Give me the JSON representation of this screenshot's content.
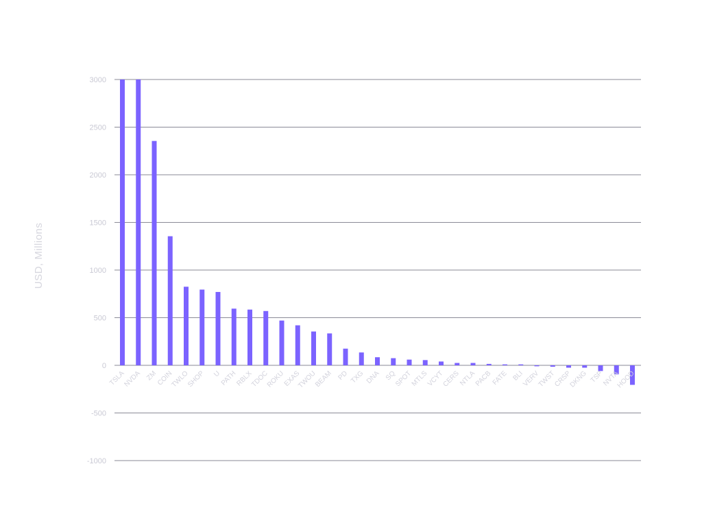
{
  "colors": {
    "bar": "#7b63ff",
    "grid": "#8a8a96",
    "tick_text": "#c9c9d4",
    "axis_label": "#d6d6de"
  },
  "chart_data": {
    "type": "bar",
    "title": "",
    "xlabel": "",
    "ylabel": "USD, Millions",
    "ylim": [
      -1000,
      3000
    ],
    "yticks": [
      3000,
      2500,
      2000,
      1500,
      1000,
      500,
      0,
      -500,
      -1000
    ],
    "grid": true,
    "legend": "none",
    "categories": [
      "TSLA",
      "NVDA",
      "ZM",
      "COIN",
      "TWLO",
      "SHOP",
      "U",
      "PATH",
      "RBLX",
      "TDOC",
      "ROKU",
      "EXAS",
      "TWOU",
      "BEAM",
      "PD",
      "TXG",
      "DNA",
      "SQ",
      "SPOT",
      "MTLS",
      "VCYT",
      "CERS",
      "NTLA",
      "PACB",
      "FATE",
      "BLI",
      "VERV",
      "TWST",
      "CRSP",
      "DKNG",
      "TSP",
      "NVTA",
      "HOOD"
    ],
    "values": [
      3000,
      3000,
      2355,
      1355,
      825,
      795,
      770,
      595,
      585,
      570,
      470,
      420,
      355,
      335,
      175,
      135,
      85,
      75,
      60,
      55,
      40,
      25,
      25,
      15,
      10,
      10,
      -10,
      -15,
      -25,
      -25,
      -60,
      -95,
      -205
    ]
  }
}
